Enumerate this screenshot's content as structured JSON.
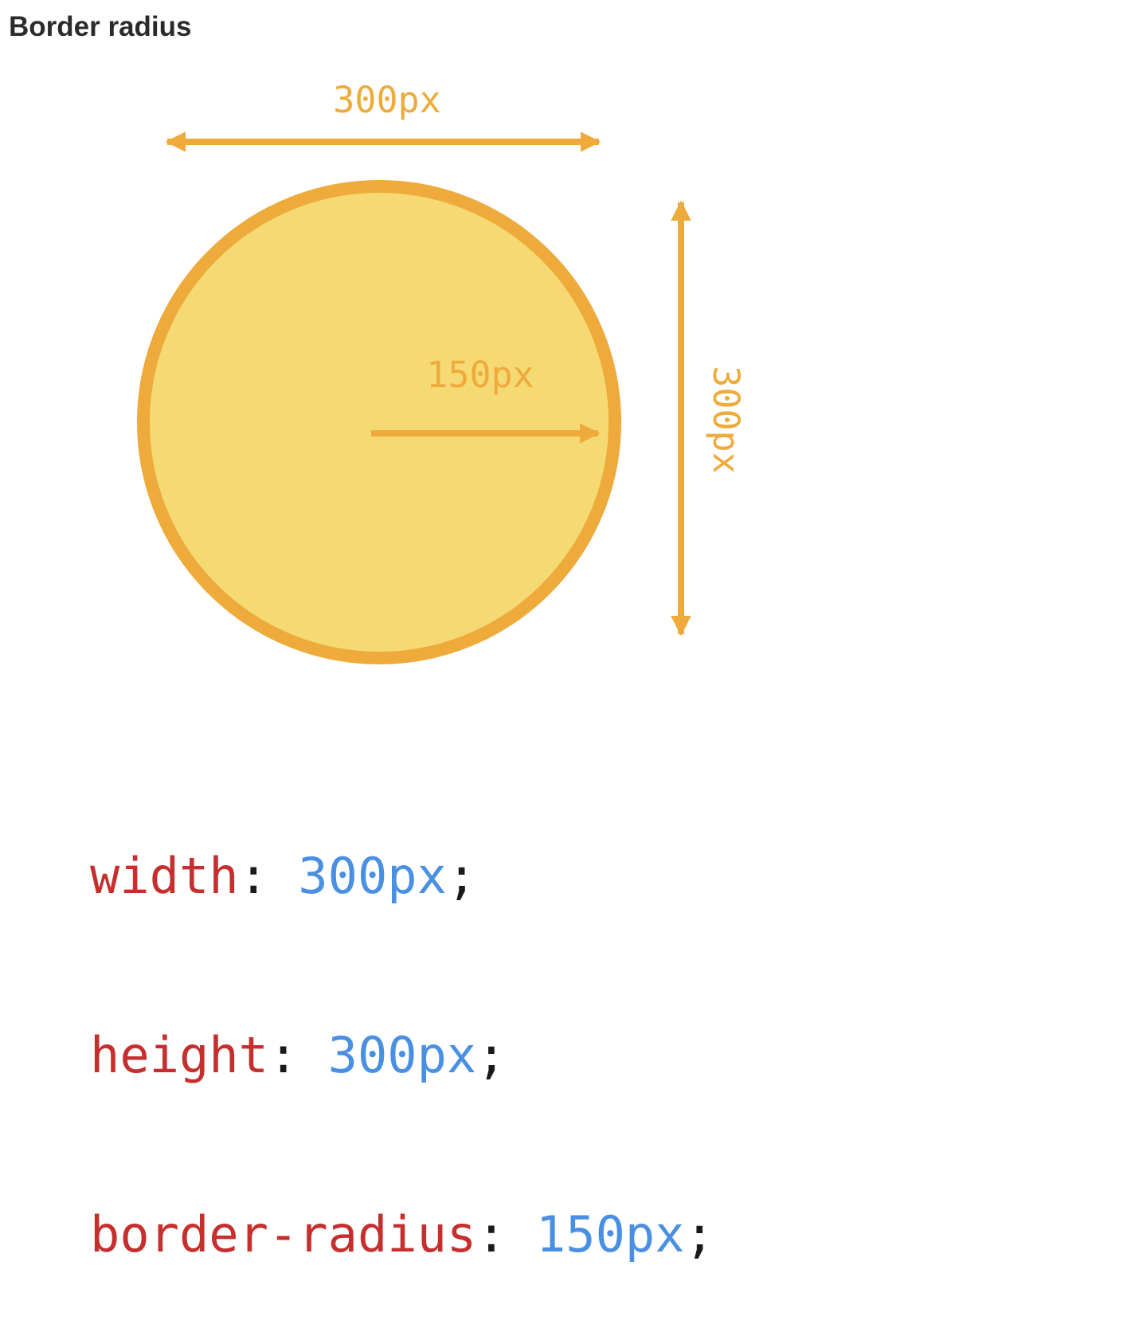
{
  "title": "Border radius",
  "diagram": {
    "width_label": "300px",
    "height_label": "300px",
    "radius_label": "150px",
    "colors": {
      "circle_fill": "#f5da73",
      "circle_stroke": "#eeab3c",
      "arrow": "#eeab3c",
      "label": "#eeab3c"
    }
  },
  "code": {
    "colors": {
      "property": "#c5302e",
      "value": "#4a90e2",
      "punctuation": "#1a1a1a"
    },
    "lines": [
      {
        "property": "width",
        "colon": ": ",
        "value": "300px",
        "semicolon": ";"
      },
      {
        "property": "height",
        "colon": ": ",
        "value": "300px",
        "semicolon": ";"
      },
      {
        "property": "border-radius",
        "colon": ": ",
        "value": "150px",
        "semicolon": ";"
      }
    ]
  }
}
